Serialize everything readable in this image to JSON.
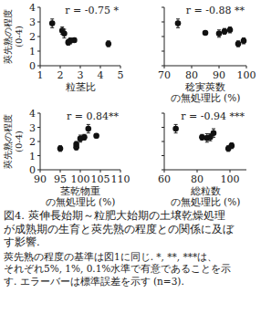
{
  "chart_data": [
    {
      "type": "scatter",
      "annotation": "r = -0.75 *",
      "y_label": [
        "莢先熟の程度",
        "(0-4)"
      ],
      "x_label": [
        "粒茎比"
      ],
      "x": [
        1.6,
        2.1,
        2.2,
        2.4,
        2.7,
        2.5,
        4.4
      ],
      "values": [
        2.9,
        2.4,
        2.2,
        1.6,
        1.75,
        1.7,
        1.5
      ],
      "errors": [
        0.3,
        0.25,
        0.3,
        0.2,
        0.15,
        0.2,
        0.2
      ],
      "xlim": [
        1,
        5
      ],
      "xticks": [
        1,
        2,
        3,
        4,
        5
      ],
      "ylim": [
        0,
        4
      ],
      "yticks": [
        0,
        1,
        2,
        3,
        4
      ],
      "color": "#111111",
      "marker": "circle"
    },
    {
      "type": "scatter",
      "annotation": "r = -0.88 **",
      "x_label": [
        "稔実莢数",
        "の無処理比 (%)"
      ],
      "x": [
        75,
        85,
        90,
        92,
        94,
        97,
        99
      ],
      "values": [
        2.9,
        2.25,
        2.2,
        2.35,
        2.45,
        1.5,
        1.7
      ],
      "errors": [
        0.3,
        0.1,
        0.25,
        0.2,
        0.2,
        0.2,
        0.2
      ],
      "xlim": [
        70,
        100
      ],
      "xticks": [
        70,
        80,
        90,
        100
      ],
      "ylim": [
        0,
        4
      ],
      "yticks": [
        0,
        1,
        2,
        3,
        4
      ],
      "tick_labels": "x",
      "color": "#111111",
      "marker": "circle"
    },
    {
      "type": "scatter",
      "annotation": "r = 0.84**",
      "y_label": [
        "莢先熟の程度",
        "(0-4)"
      ],
      "x_label": [
        "茎乾物重",
        "の無処理比 (%)"
      ],
      "x": [
        95,
        99,
        99,
        100,
        101,
        102,
        104
      ],
      "values": [
        1.5,
        1.6,
        1.8,
        2.2,
        2.3,
        2.9,
        2.4
      ],
      "errors": [
        0.2,
        0.2,
        0.2,
        0.25,
        0.2,
        0.3,
        0.15
      ],
      "xlim": [
        90,
        110
      ],
      "xticks": [
        90,
        95,
        100,
        105,
        110
      ],
      "ylim": [
        0,
        4
      ],
      "yticks": [
        0,
        1,
        2,
        3,
        4
      ],
      "color": "#111111",
      "marker": "circle"
    },
    {
      "type": "scatter",
      "annotation": "r = -0.94 ***",
      "x_label": [
        "総粒数",
        "の無処理比 (%)"
      ],
      "x": [
        67,
        83,
        86,
        88,
        90,
        99,
        101
      ],
      "values": [
        2.9,
        2.3,
        2.25,
        2.3,
        2.6,
        1.5,
        1.7
      ],
      "errors": [
        0.3,
        0.2,
        0.3,
        0.25,
        0.3,
        0.2,
        0.2
      ],
      "xlim": [
        60,
        110
      ],
      "xticks": [
        60,
        80,
        100
      ],
      "ylim": [
        0,
        4
      ],
      "yticks": [
        0,
        1,
        2,
        3,
        4
      ],
      "tick_labels": "x",
      "color": "#111111",
      "marker": "circle"
    }
  ],
  "caption": {
    "title_lines": [
      "図4. 莢伸長始期～粒肥大始期の土壌乾燥処理",
      "が成熟期の生育と莢先熟の程度との関係に及ぼ",
      "す影響."
    ],
    "note_lines": [
      "莢先熟の程度の基準は図1に同じ. *, **, ***は、",
      "それぞれ5%, 1%, 0.1%水準で有意であることを示",
      "す. エラーバーは標準誤差を示す (n=3)."
    ]
  }
}
